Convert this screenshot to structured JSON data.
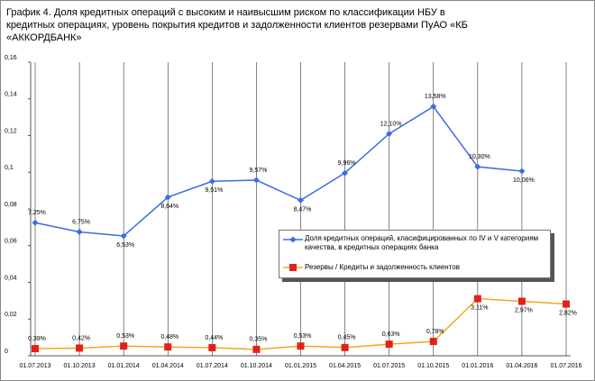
{
  "chart_data": {
    "type": "line",
    "title": "График 4. Доля кредитных операций с высоким и наивысшим риском по классификации НБУ в кредитных операциях, уровень покрытия кредитов и задолженности клиентов резервами ПуАО «КБ «АККОРДБАНК»",
    "categories": [
      "01.07.2013",
      "01.10.2013",
      "01.01.2014",
      "01.04.2014",
      "01.07.2014",
      "01.10.2014",
      "01.01.2015",
      "01.04.2015",
      "01.07.2015",
      "01.10.2015",
      "01.01.2016",
      "01.04.2016",
      "01.07.2016"
    ],
    "series": [
      {
        "name": "Доля кредитных операций, класифицированных по  IV и V категориям качества, в кредитных операциях банка",
        "color": "#3d6be0",
        "marker_color": "#3d6be0",
        "marker": "diamond",
        "values": [
          0.0725,
          0.0675,
          0.0653,
          0.0864,
          0.0951,
          0.0957,
          0.0847,
          0.0996,
          0.121,
          0.1358,
          0.103,
          0.1006,
          null
        ],
        "value_labels": [
          "7,25%",
          "6,75%",
          "6,53%",
          "8,64%",
          "9,51%",
          "9,57%",
          "8,47%",
          "9,96%",
          "12,10%",
          "13,58%",
          "10,30%",
          "10,06%",
          null
        ]
      },
      {
        "name": "Резервы / Кредиты и задолженность клиентов",
        "color": "#f5a623",
        "marker_color": "#e3201b",
        "marker": "square",
        "values": [
          0.0039,
          0.0042,
          0.0053,
          0.0048,
          0.0044,
          0.0035,
          0.0053,
          0.0045,
          0.0063,
          0.0078,
          0.0311,
          0.0297,
          0.0282
        ],
        "value_labels": [
          "0,39%",
          "0,42%",
          "0,53%",
          "0,48%",
          "0,44%",
          "0,35%",
          "0,53%",
          "0,45%",
          "0,63%",
          "0,78%",
          "3,11%",
          "2,97%",
          "2,82%"
        ]
      }
    ],
    "ylim": [
      0,
      0.16
    ],
    "yticks": [
      0,
      {
        "value": 0.02,
        "label": "0,02"
      },
      {
        "value": 0.04,
        "label": "0,04"
      },
      {
        "value": 0.06,
        "label": "0,06"
      },
      {
        "value": 0.08,
        "label": "0,08"
      },
      {
        "value": 0.1,
        "label": "0,1"
      },
      {
        "value": 0.12,
        "label": "0,12"
      },
      {
        "value": 0.14,
        "label": "0,14"
      },
      {
        "value": 0.16,
        "label": "0,16"
      }
    ],
    "grid": "x"
  }
}
